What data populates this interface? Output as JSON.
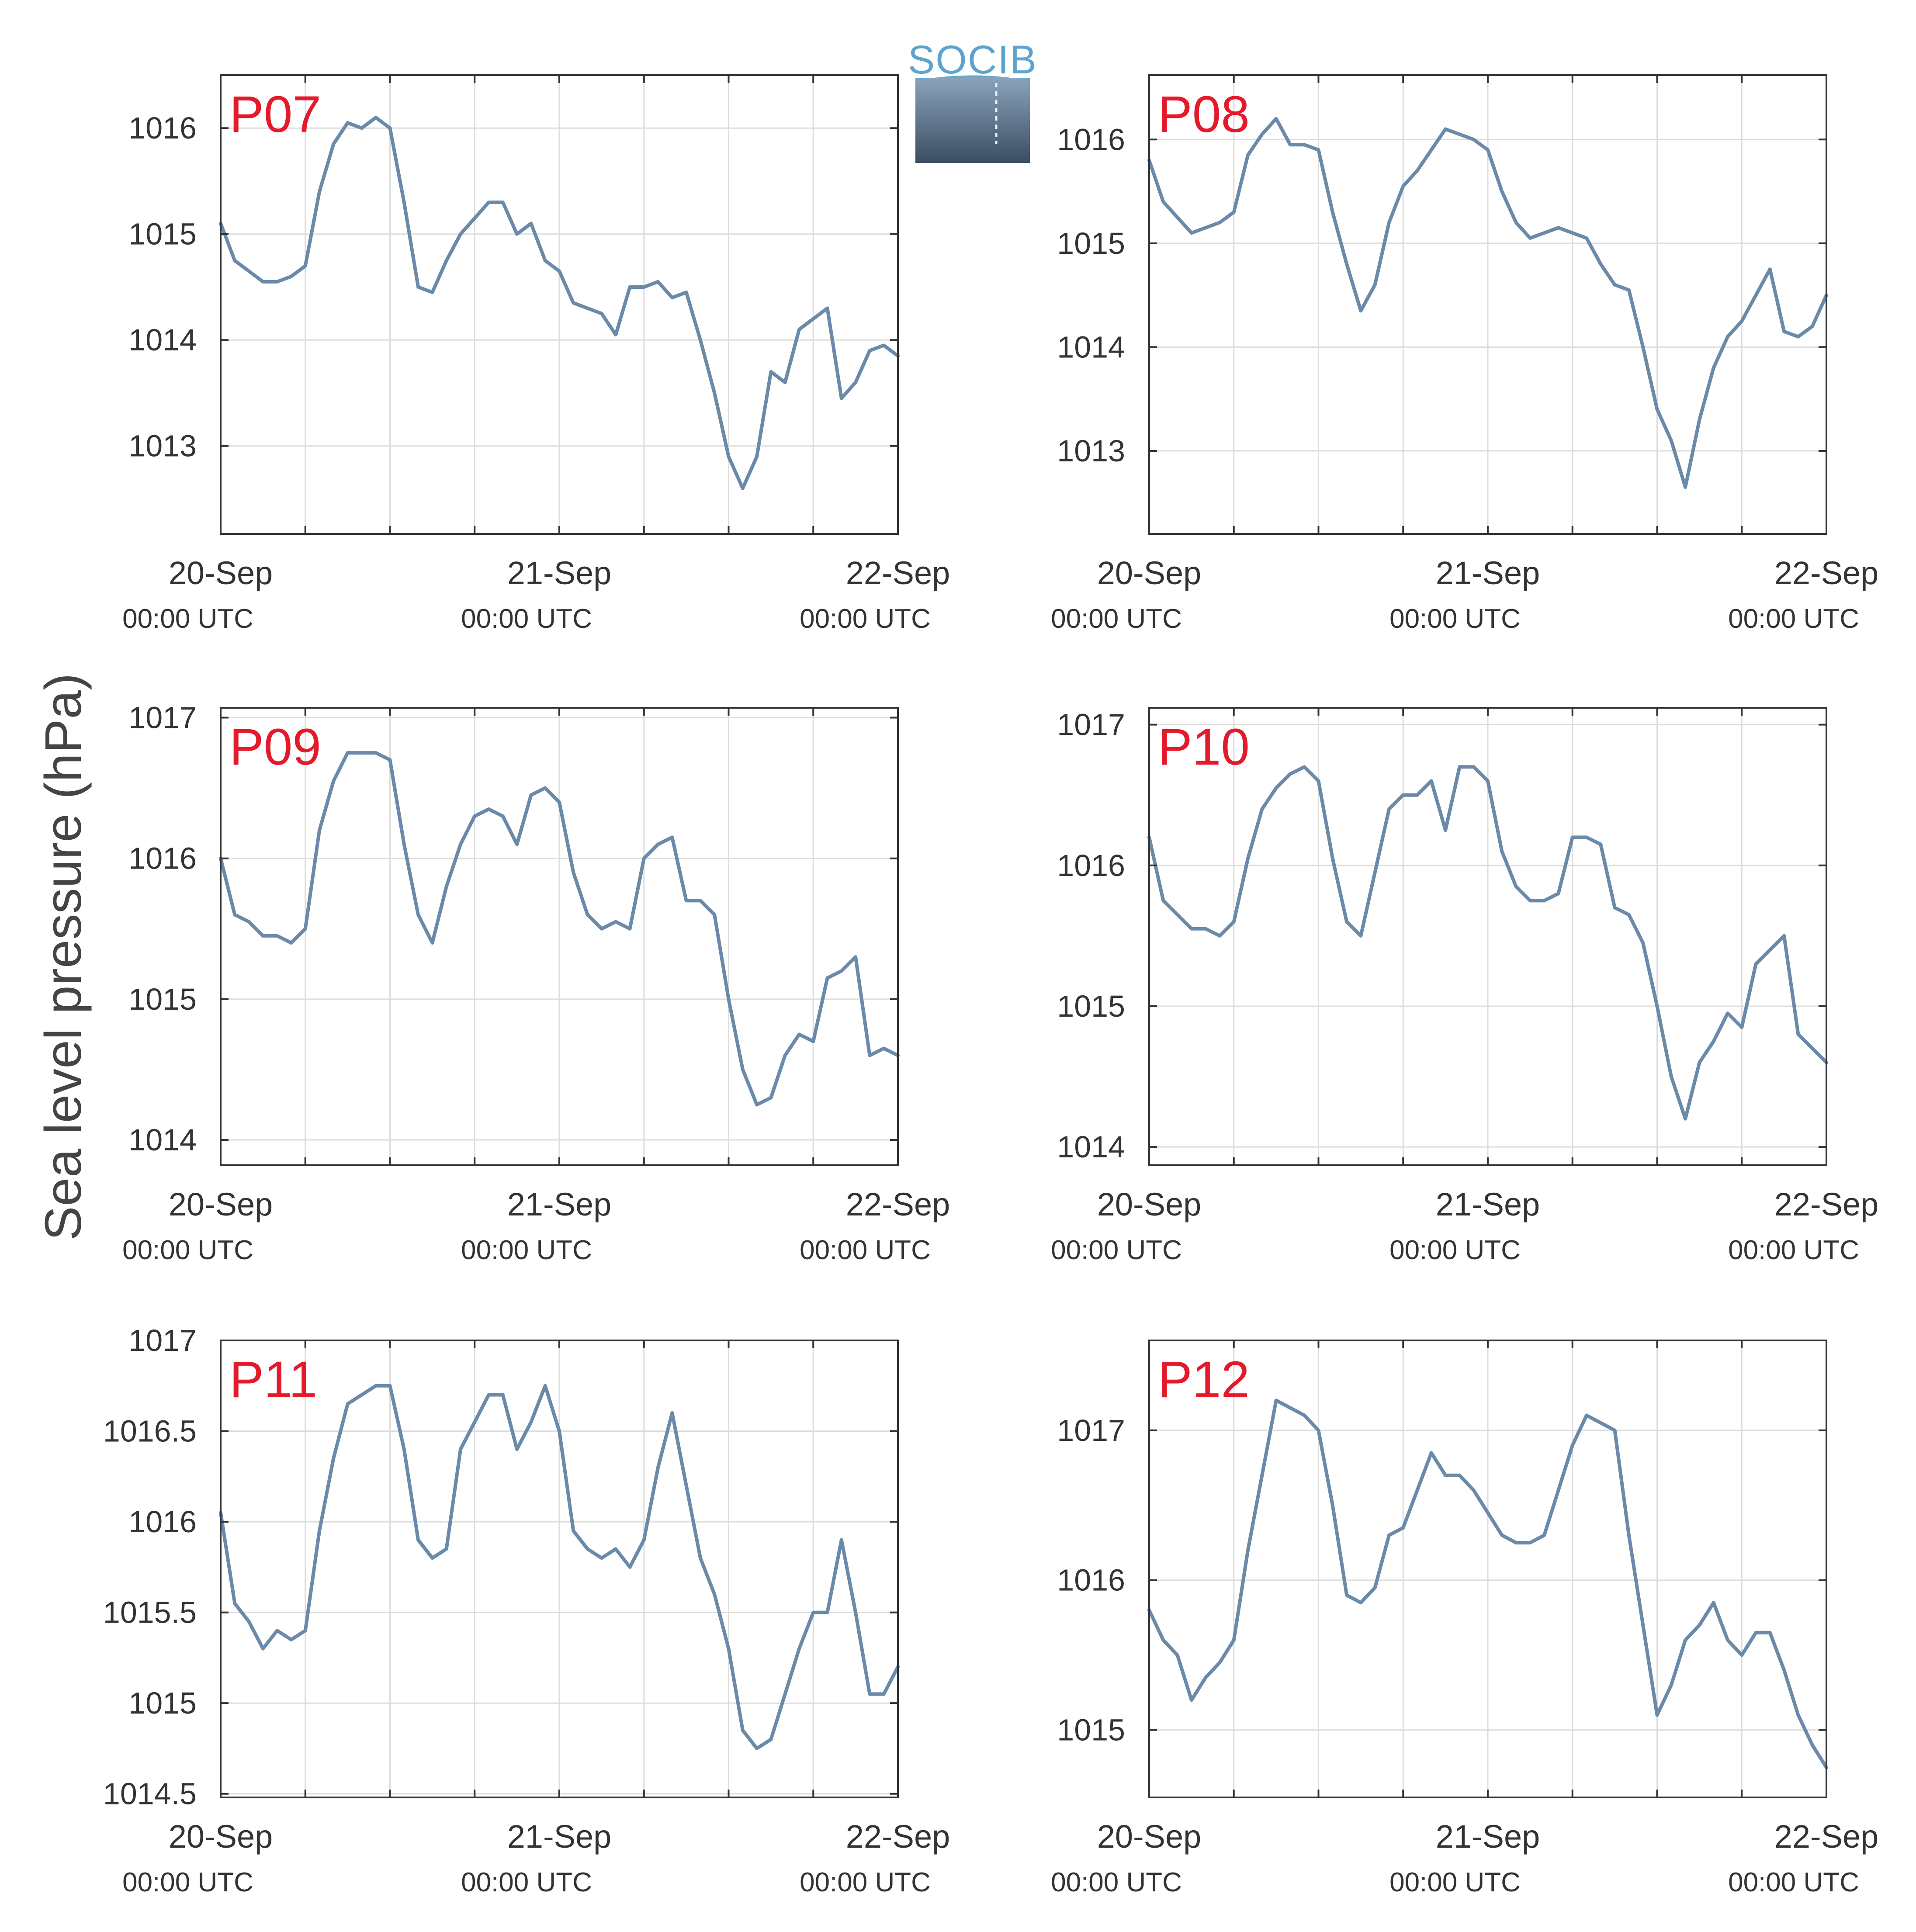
{
  "figure": {
    "ylabel": "Sea level pressure (hPa)",
    "logo_text": "SOCIB"
  },
  "colors": {
    "series": "#6a8aaa",
    "station_label": "#e41a2b",
    "axis": "#333333",
    "grid": "#dddddd",
    "tick_text": "#333333"
  },
  "chart_data": [
    {
      "type": "line",
      "station": "P07",
      "xlim": [
        0,
        48
      ],
      "ylim": [
        1012.17,
        1016.5
      ],
      "yticks": [
        1013,
        1014,
        1015,
        1016
      ],
      "xtick_labels": [
        {
          "x": 0,
          "date": "20-Sep",
          "time": "00:00 UTC"
        },
        {
          "x": 24,
          "date": "21-Sep",
          "time": "00:00 UTC"
        },
        {
          "x": 48,
          "date": "22-Sep",
          "time": "00:00 UTC"
        }
      ],
      "grid_x": [
        6,
        12,
        18,
        24,
        30,
        36,
        42
      ],
      "grid": true,
      "series": [
        {
          "x": [
            0,
            1,
            2,
            3,
            4,
            5,
            6,
            7,
            8,
            9,
            10,
            11,
            12,
            13,
            14,
            15,
            16,
            17,
            18,
            19,
            20,
            21,
            22,
            23,
            24,
            25,
            26,
            27,
            28,
            29,
            30,
            31,
            32,
            33,
            34,
            35,
            36,
            37,
            38,
            39,
            40,
            41,
            42,
            43,
            44,
            45,
            46,
            47,
            48
          ],
          "y": [
            1015.1,
            1014.75,
            1014.65,
            1014.55,
            1014.55,
            1014.6,
            1014.7,
            1015.4,
            1015.85,
            1016.05,
            1016.0,
            1016.1,
            1016.0,
            1015.3,
            1014.5,
            1014.45,
            1014.75,
            1015.0,
            1015.15,
            1015.3,
            1015.3,
            1015.0,
            1015.1,
            1014.75,
            1014.65,
            1014.35,
            1014.3,
            1014.25,
            1014.05,
            1014.5,
            1014.5,
            1014.55,
            1014.4,
            1014.45,
            1014.0,
            1013.5,
            1012.9,
            1012.6,
            1012.9,
            1013.7,
            1013.6,
            1014.1,
            1014.2,
            1014.3,
            1013.45,
            1013.6,
            1013.9,
            1013.95,
            1013.85
          ]
        }
      ]
    },
    {
      "type": "line",
      "station": "P08",
      "xlim": [
        0,
        48
      ],
      "ylim": [
        1012.2,
        1016.62
      ],
      "yticks": [
        1013,
        1014,
        1015,
        1016
      ],
      "xtick_labels": [
        {
          "x": 0,
          "date": "20-Sep",
          "time": "00:00 UTC"
        },
        {
          "x": 24,
          "date": "21-Sep",
          "time": "00:00 UTC"
        },
        {
          "x": 48,
          "date": "22-Sep",
          "time": "00:00 UTC"
        }
      ],
      "grid_x": [
        6,
        12,
        18,
        24,
        30,
        36,
        42
      ],
      "grid": true,
      "series": [
        {
          "x": [
            0,
            1,
            2,
            3,
            4,
            5,
            6,
            7,
            8,
            9,
            10,
            11,
            12,
            13,
            14,
            15,
            16,
            17,
            18,
            19,
            20,
            21,
            22,
            23,
            24,
            25,
            26,
            27,
            28,
            29,
            30,
            31,
            32,
            33,
            34,
            35,
            36,
            37,
            38,
            39,
            40,
            41,
            42,
            43,
            44,
            45,
            46,
            47,
            48
          ],
          "y": [
            1015.8,
            1015.4,
            1015.25,
            1015.1,
            1015.15,
            1015.2,
            1015.3,
            1015.85,
            1016.05,
            1016.2,
            1015.95,
            1015.95,
            1015.9,
            1015.3,
            1014.8,
            1014.35,
            1014.6,
            1015.2,
            1015.55,
            1015.7,
            1015.9,
            1016.1,
            1016.05,
            1016.0,
            1015.9,
            1015.5,
            1015.2,
            1015.05,
            1015.1,
            1015.15,
            1015.1,
            1015.05,
            1014.8,
            1014.6,
            1014.55,
            1014.0,
            1013.4,
            1013.1,
            1012.65,
            1013.3,
            1013.8,
            1014.1,
            1014.25,
            1014.5,
            1014.75,
            1014.15,
            1014.1,
            1014.2,
            1014.5
          ]
        }
      ]
    },
    {
      "type": "line",
      "station": "P09",
      "xlim": [
        0,
        48
      ],
      "ylim": [
        1013.82,
        1017.07
      ],
      "yticks": [
        1014,
        1015,
        1016,
        1017
      ],
      "xtick_labels": [
        {
          "x": 0,
          "date": "20-Sep",
          "time": "00:00 UTC"
        },
        {
          "x": 24,
          "date": "21-Sep",
          "time": "00:00 UTC"
        },
        {
          "x": 48,
          "date": "22-Sep",
          "time": "00:00 UTC"
        }
      ],
      "grid_x": [
        6,
        12,
        18,
        24,
        30,
        36,
        42
      ],
      "grid": true,
      "series": [
        {
          "x": [
            0,
            1,
            2,
            3,
            4,
            5,
            6,
            7,
            8,
            9,
            10,
            11,
            12,
            13,
            14,
            15,
            16,
            17,
            18,
            19,
            20,
            21,
            22,
            23,
            24,
            25,
            26,
            27,
            28,
            29,
            30,
            31,
            32,
            33,
            34,
            35,
            36,
            37,
            38,
            39,
            40,
            41,
            42,
            43,
            44,
            45,
            46,
            47,
            48
          ],
          "y": [
            1016.0,
            1015.6,
            1015.55,
            1015.45,
            1015.45,
            1015.4,
            1015.5,
            1016.2,
            1016.55,
            1016.75,
            1016.75,
            1016.75,
            1016.7,
            1016.1,
            1015.6,
            1015.4,
            1015.8,
            1016.1,
            1016.3,
            1016.35,
            1016.3,
            1016.1,
            1016.45,
            1016.5,
            1016.4,
            1015.9,
            1015.6,
            1015.5,
            1015.55,
            1015.5,
            1016.0,
            1016.1,
            1016.15,
            1015.7,
            1015.7,
            1015.6,
            1015.0,
            1014.5,
            1014.25,
            1014.3,
            1014.6,
            1014.75,
            1014.7,
            1015.15,
            1015.2,
            1015.3,
            1014.6,
            1014.65,
            1014.6
          ]
        }
      ]
    },
    {
      "type": "line",
      "station": "P10",
      "xlim": [
        0,
        48
      ],
      "ylim": [
        1013.87,
        1017.12
      ],
      "yticks": [
        1014,
        1015,
        1016,
        1017
      ],
      "xtick_labels": [
        {
          "x": 0,
          "date": "20-Sep",
          "time": "00:00 UTC"
        },
        {
          "x": 24,
          "date": "21-Sep",
          "time": "00:00 UTC"
        },
        {
          "x": 48,
          "date": "22-Sep",
          "time": "00:00 UTC"
        }
      ],
      "grid_x": [
        6,
        12,
        18,
        24,
        30,
        36,
        42
      ],
      "grid": true,
      "series": [
        {
          "x": [
            0,
            1,
            2,
            3,
            4,
            5,
            6,
            7,
            8,
            9,
            10,
            11,
            12,
            13,
            14,
            15,
            16,
            17,
            18,
            19,
            20,
            21,
            22,
            23,
            24,
            25,
            26,
            27,
            28,
            29,
            30,
            31,
            32,
            33,
            34,
            35,
            36,
            37,
            38,
            39,
            40,
            41,
            42,
            43,
            44,
            45,
            46,
            47,
            48
          ],
          "y": [
            1016.2,
            1015.75,
            1015.65,
            1015.55,
            1015.55,
            1015.5,
            1015.6,
            1016.05,
            1016.4,
            1016.55,
            1016.65,
            1016.7,
            1016.6,
            1016.05,
            1015.6,
            1015.5,
            1015.95,
            1016.4,
            1016.5,
            1016.5,
            1016.6,
            1016.25,
            1016.7,
            1016.7,
            1016.6,
            1016.1,
            1015.85,
            1015.75,
            1015.75,
            1015.8,
            1016.2,
            1016.2,
            1016.15,
            1015.7,
            1015.65,
            1015.45,
            1015.0,
            1014.5,
            1014.2,
            1014.6,
            1014.75,
            1014.95,
            1014.85,
            1015.3,
            1015.4,
            1015.5,
            1014.8,
            1014.7,
            1014.6
          ]
        }
      ]
    },
    {
      "type": "line",
      "station": "P11",
      "xlim": [
        0,
        48
      ],
      "ylim": [
        1014.48,
        1017.0
      ],
      "yticks": [
        1014.5,
        1015,
        1015.5,
        1016,
        1016.5,
        1017
      ],
      "ytick_labels": [
        "1014.5",
        "1015",
        "1015.5",
        "1016",
        "1016.5",
        "1017"
      ],
      "xtick_labels": [
        {
          "x": 0,
          "date": "20-Sep",
          "time": "00:00 UTC"
        },
        {
          "x": 24,
          "date": "21-Sep",
          "time": "00:00 UTC"
        },
        {
          "x": 48,
          "date": "22-Sep",
          "time": "00:00 UTC"
        }
      ],
      "grid_x": [
        6,
        12,
        18,
        24,
        30,
        36,
        42
      ],
      "grid": true,
      "series": [
        {
          "x": [
            0,
            1,
            2,
            3,
            4,
            5,
            6,
            7,
            8,
            9,
            10,
            11,
            12,
            13,
            14,
            15,
            16,
            17,
            18,
            19,
            20,
            21,
            22,
            23,
            24,
            25,
            26,
            27,
            28,
            29,
            30,
            31,
            32,
            33,
            34,
            35,
            36,
            37,
            38,
            39,
            40,
            41,
            42,
            43,
            44,
            45,
            46,
            47,
            48
          ],
          "y": [
            1016.05,
            1015.55,
            1015.45,
            1015.3,
            1015.4,
            1015.35,
            1015.4,
            1015.95,
            1016.35,
            1016.65,
            1016.7,
            1016.75,
            1016.75,
            1016.4,
            1015.9,
            1015.8,
            1015.85,
            1016.4,
            1016.55,
            1016.7,
            1016.7,
            1016.4,
            1016.55,
            1016.75,
            1016.5,
            1015.95,
            1015.85,
            1015.8,
            1015.85,
            1015.75,
            1015.9,
            1016.3,
            1016.6,
            1016.2,
            1015.8,
            1015.6,
            1015.3,
            1014.85,
            1014.75,
            1014.8,
            1015.05,
            1015.3,
            1015.5,
            1015.5,
            1015.9,
            1015.5,
            1015.05,
            1015.05,
            1015.2
          ]
        }
      ]
    },
    {
      "type": "line",
      "station": "P12",
      "xlim": [
        0,
        48
      ],
      "ylim": [
        1014.55,
        1017.6
      ],
      "yticks": [
        1015,
        1016,
        1017
      ],
      "xtick_labels": [
        {
          "x": 0,
          "date": "20-Sep",
          "time": "00:00 UTC"
        },
        {
          "x": 24,
          "date": "21-Sep",
          "time": "00:00 UTC"
        },
        {
          "x": 48,
          "date": "22-Sep",
          "time": "00:00 UTC"
        }
      ],
      "grid_x": [
        6,
        12,
        18,
        24,
        30,
        36,
        42
      ],
      "grid": true,
      "series": [
        {
          "x": [
            0,
            1,
            2,
            3,
            4,
            5,
            6,
            7,
            8,
            9,
            10,
            11,
            12,
            13,
            14,
            15,
            16,
            17,
            18,
            19,
            20,
            21,
            22,
            23,
            24,
            25,
            26,
            27,
            28,
            29,
            30,
            31,
            32,
            33,
            34,
            35,
            36,
            37,
            38,
            39,
            40,
            41,
            42,
            43,
            44,
            45,
            46,
            47,
            48
          ],
          "y": [
            1015.8,
            1015.6,
            1015.5,
            1015.2,
            1015.35,
            1015.45,
            1015.6,
            1016.2,
            1016.7,
            1017.2,
            1017.15,
            1017.1,
            1017.0,
            1016.5,
            1015.9,
            1015.85,
            1015.95,
            1016.3,
            1016.35,
            1016.6,
            1016.85,
            1016.7,
            1016.7,
            1016.6,
            1016.45,
            1016.3,
            1016.25,
            1016.25,
            1016.3,
            1016.6,
            1016.9,
            1017.1,
            1017.05,
            1017.0,
            1016.3,
            1015.7,
            1015.1,
            1015.3,
            1015.6,
            1015.7,
            1015.85,
            1015.6,
            1015.5,
            1015.65,
            1015.65,
            1015.4,
            1015.1,
            1014.9,
            1014.75
          ]
        }
      ]
    }
  ]
}
